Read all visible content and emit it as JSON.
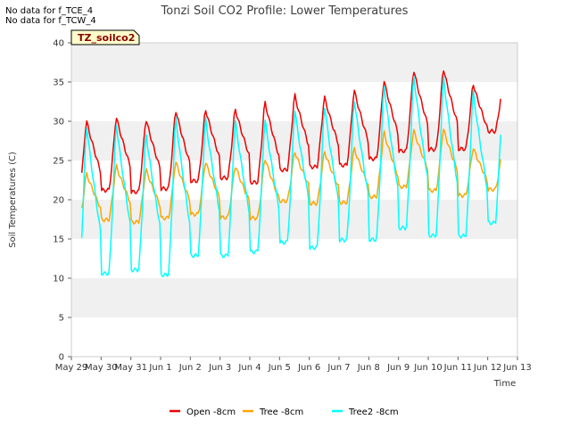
{
  "no_data_messages": [
    "No data for f_TCE_4",
    "No data for f_TCW_4"
  ],
  "site_tag": "TZ_soilco2",
  "chart_data": {
    "type": "line",
    "title": "Tonzi Soil CO2 Profile: Lower Temperatures",
    "xlabel": "Time",
    "ylabel": "Soil Temperatures (C)",
    "ylim": [
      0,
      40
    ],
    "yticks": [
      0,
      5,
      10,
      15,
      20,
      25,
      30,
      35,
      40
    ],
    "xlim": [
      "2023-05-29",
      "2023-06-13"
    ],
    "xticks": [
      "May 29",
      "May 30",
      "May 31",
      "Jun 1",
      "Jun 2",
      "Jun 3",
      "Jun 4",
      "Jun 5",
      "Jun 6",
      "Jun 7",
      "Jun 8",
      "Jun 9",
      "Jun 10",
      "Jun 11",
      "Jun 12",
      "Jun 13"
    ],
    "grid": "horizontal bands",
    "legend_position": "bottom",
    "series": [
      {
        "name": "Open -8cm",
        "color": "#ee0000",
        "daily_min": [
          20.3,
          21.0,
          20.8,
          21.2,
          22.2,
          22.6,
          22.0,
          23.6,
          24.0,
          24.2,
          25.0,
          26.0,
          26.2,
          26.3,
          28.6
        ],
        "daily_max": [
          30.3,
          30.8,
          30.5,
          31.7,
          31.8,
          31.8,
          32.7,
          33.6,
          33.3,
          34.2,
          35.5,
          36.8,
          37.0,
          35.0,
          35.0
        ]
      },
      {
        "name": "Tree -8cm",
        "color": "#ffa500",
        "daily_min": [
          16.7,
          17.3,
          17.0,
          17.5,
          18.0,
          17.6,
          17.5,
          19.7,
          19.4,
          19.5,
          20.2,
          21.5,
          21.0,
          20.4,
          21.2
        ],
        "daily_max": [
          23.5,
          24.5,
          24.0,
          25.0,
          25.0,
          24.5,
          25.5,
          26.3,
          26.3,
          26.7,
          28.8,
          29.0,
          29.2,
          26.8,
          26.8
        ]
      },
      {
        "name": "Tree2 -8cm",
        "color": "#00ffff",
        "daily_min": [
          9.0,
          10.2,
          10.7,
          10.0,
          12.5,
          12.5,
          13.0,
          14.2,
          13.5,
          14.5,
          14.5,
          16.0,
          15.0,
          15.0,
          16.7
        ],
        "daily_max": [
          30.0,
          30.2,
          28.8,
          31.0,
          30.8,
          30.5,
          30.7,
          32.0,
          32.5,
          33.3,
          35.2,
          36.3,
          36.2,
          34.3,
          34.3
        ]
      }
    ]
  }
}
